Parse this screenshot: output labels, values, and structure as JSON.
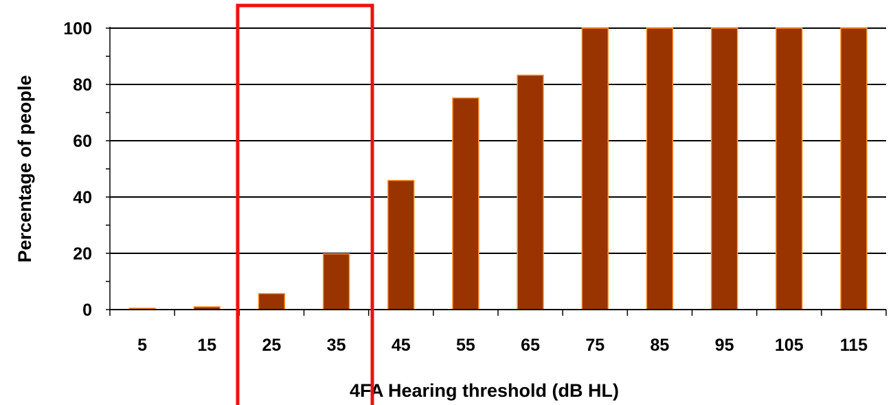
{
  "chart_data": {
    "type": "bar",
    "categories": [
      "5",
      "15",
      "25",
      "35",
      "45",
      "55",
      "65",
      "75",
      "85",
      "95",
      "105",
      "115"
    ],
    "values": [
      0.5,
      1,
      5.7,
      19.8,
      45.9,
      75.2,
      83.3,
      100,
      100,
      100,
      100,
      100
    ],
    "xlabel": "4FA Hearing threshold (dB HL)",
    "ylabel": "Percentage of people",
    "ylim": [
      0,
      100
    ],
    "yticks": [
      "0",
      "20",
      "40",
      "60",
      "80",
      "100"
    ],
    "grid": "horizontal",
    "bar_color": "#993300",
    "bar_edge_color": "#ff9933",
    "highlight": {
      "shape": "rectangle-outline",
      "color": "#ee1111",
      "covers_categories": [
        "25",
        "35"
      ]
    }
  }
}
